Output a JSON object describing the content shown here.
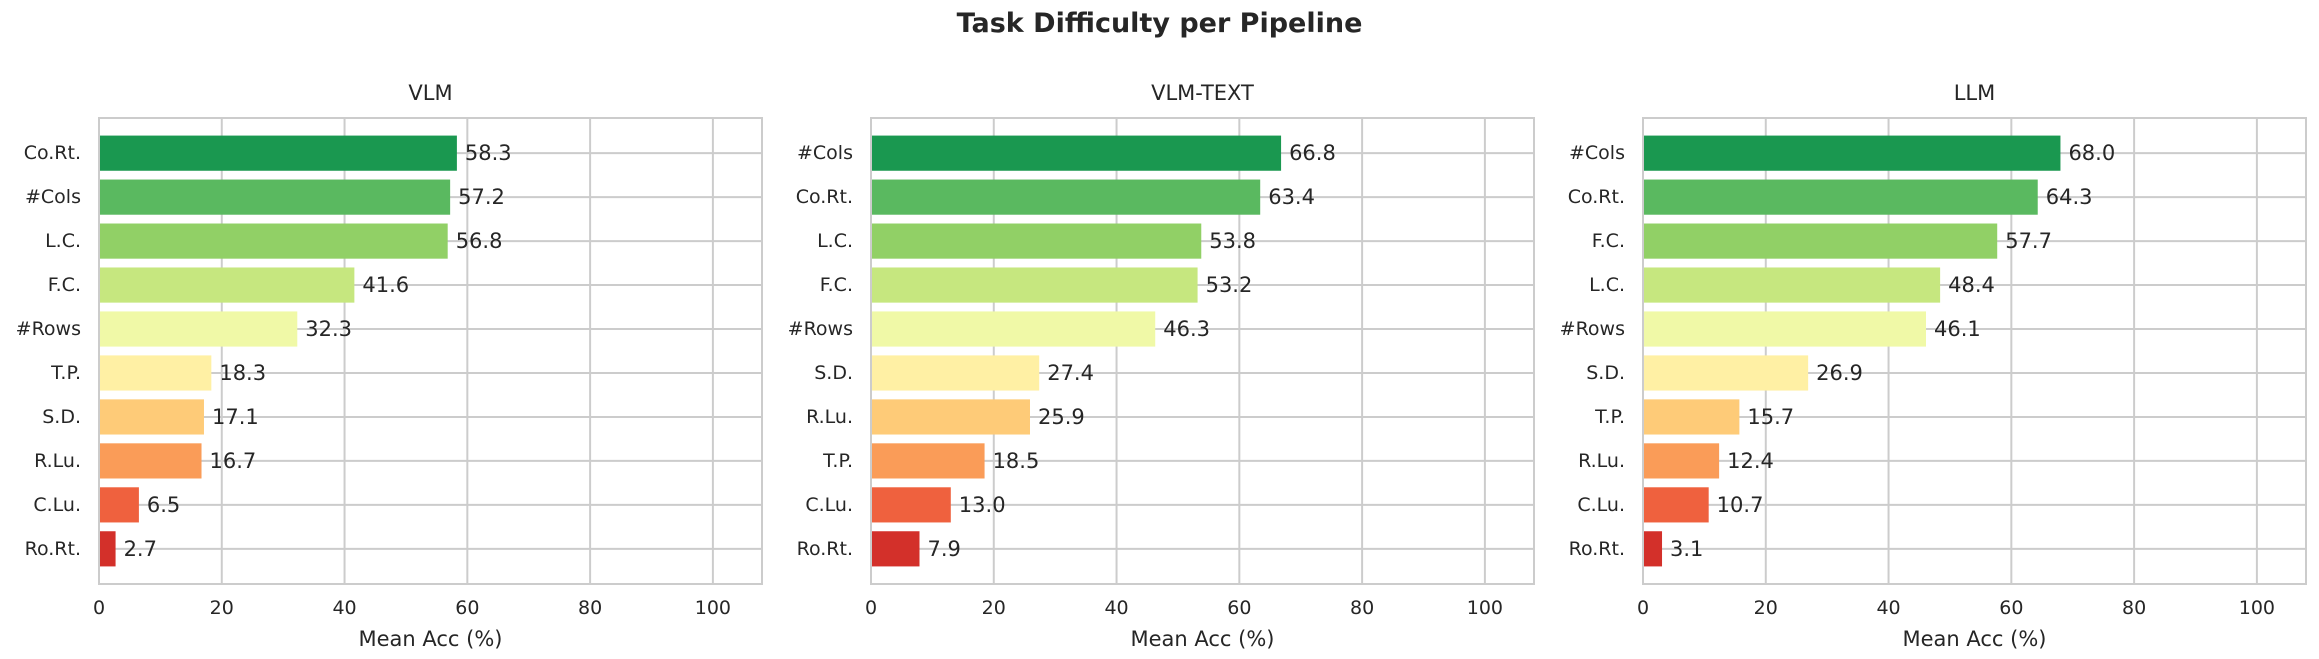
{
  "figure": {
    "title": "Task Difficulty per Pipeline"
  },
  "colors": [
    "#1a9850",
    "#5ab960",
    "#91d066",
    "#c6e77f",
    "#f0f9a7",
    "#fff0a4",
    "#fecb78",
    "#fa9c58",
    "#ef613e",
    "#d3302a"
  ],
  "chart_data": [
    {
      "type": "bar",
      "orientation": "horizontal",
      "title": "VLM",
      "xlabel": "Mean Acc (%)",
      "xlim": [
        0,
        108
      ],
      "xticks": [
        0,
        20,
        40,
        60,
        80,
        100
      ],
      "grid": true,
      "categories": [
        "Co.Rt.",
        "#Cols",
        "L.C.",
        "F.C.",
        "#Rows",
        "T.P.",
        "S.D.",
        "R.Lu.",
        "C.Lu.",
        "Ro.Rt."
      ],
      "values": [
        58.3,
        57.2,
        56.8,
        41.6,
        32.3,
        18.3,
        17.1,
        16.7,
        6.5,
        2.7
      ],
      "labels": [
        "58.3",
        "57.2",
        "56.8",
        "41.6",
        "32.3",
        "18.3",
        "17.1",
        "16.7",
        "6.5",
        "2.7"
      ]
    },
    {
      "type": "bar",
      "orientation": "horizontal",
      "title": "VLM-TEXT",
      "xlabel": "Mean Acc (%)",
      "xlim": [
        0,
        108
      ],
      "xticks": [
        0,
        20,
        40,
        60,
        80,
        100
      ],
      "grid": true,
      "categories": [
        "#Cols",
        "Co.Rt.",
        "L.C.",
        "F.C.",
        "#Rows",
        "S.D.",
        "R.Lu.",
        "T.P.",
        "C.Lu.",
        "Ro.Rt."
      ],
      "values": [
        66.8,
        63.4,
        53.8,
        53.2,
        46.3,
        27.4,
        25.9,
        18.5,
        13.0,
        7.9
      ],
      "labels": [
        "66.8",
        "63.4",
        "53.8",
        "53.2",
        "46.3",
        "27.4",
        "25.9",
        "18.5",
        "13.0",
        "7.9"
      ]
    },
    {
      "type": "bar",
      "orientation": "horizontal",
      "title": "LLM",
      "xlabel": "Mean Acc (%)",
      "xlim": [
        0,
        108
      ],
      "xticks": [
        0,
        20,
        40,
        60,
        80,
        100
      ],
      "grid": true,
      "categories": [
        "#Cols",
        "Co.Rt.",
        "F.C.",
        "L.C.",
        "#Rows",
        "S.D.",
        "T.P.",
        "R.Lu.",
        "C.Lu.",
        "Ro.Rt."
      ],
      "values": [
        68.0,
        64.3,
        57.7,
        48.4,
        46.1,
        26.9,
        15.7,
        12.4,
        10.7,
        3.1
      ],
      "labels": [
        "68.0",
        "64.3",
        "57.7",
        "48.4",
        "46.1",
        "26.9",
        "15.7",
        "12.4",
        "10.7",
        "3.1"
      ]
    }
  ]
}
